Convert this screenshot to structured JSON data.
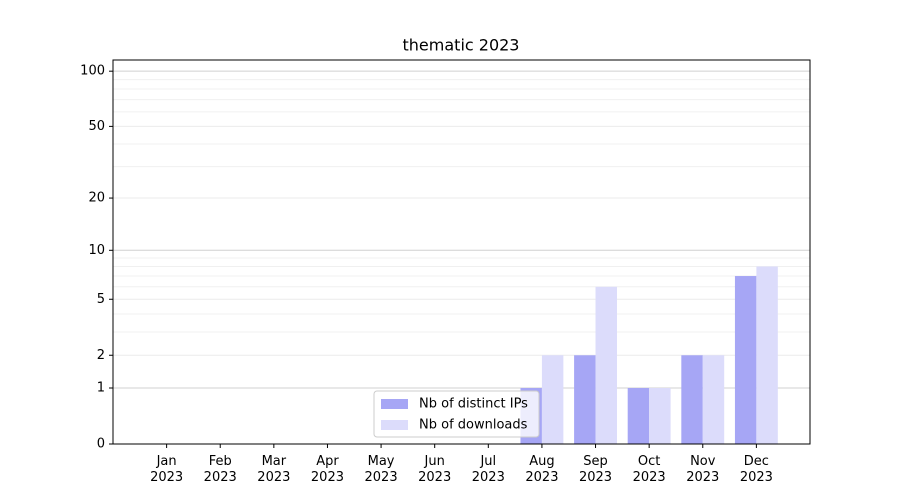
{
  "chart_data": {
    "type": "bar",
    "title": "thematic 2023",
    "categories": [
      "Jan\n2023",
      "Feb\n2023",
      "Mar\n2023",
      "Apr\n2023",
      "May\n2023",
      "Jun\n2023",
      "Jul\n2023",
      "Aug\n2023",
      "Sep\n2023",
      "Oct\n2023",
      "Nov\n2023",
      "Dec\n2023"
    ],
    "series": [
      {
        "name": "Nb of distinct IPs",
        "color": "#a6a6f5",
        "values": [
          0,
          0,
          0,
          0,
          0,
          0,
          0,
          1,
          2,
          1,
          2,
          7
        ]
      },
      {
        "name": "Nb of downloads",
        "color": "#dcdcfb",
        "values": [
          0,
          0,
          0,
          0,
          0,
          0,
          0,
          2,
          6,
          1,
          2,
          8
        ]
      }
    ],
    "yscale": "log1p",
    "ylim": [
      0,
      115
    ],
    "yticks": [
      0,
      1,
      2,
      5,
      10,
      20,
      50,
      100
    ],
    "yminor": [
      3,
      4,
      6,
      7,
      8,
      9,
      30,
      40,
      60,
      70,
      80,
      90
    ],
    "grid": true,
    "legend": "lower center"
  }
}
